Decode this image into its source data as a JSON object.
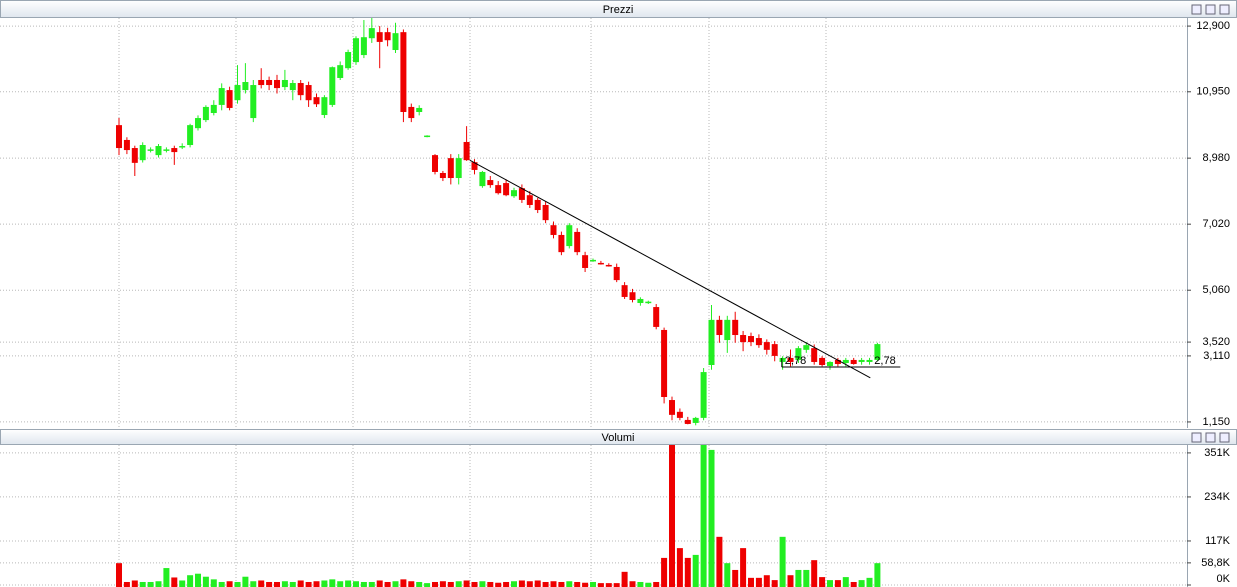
{
  "chart_data": [
    {
      "type": "candlestick",
      "title": "Prezzi",
      "open": [
        9.96,
        9.52,
        9.28,
        8.92,
        9.2,
        9.07,
        9.2,
        9.28,
        9.3,
        9.37,
        9.87,
        10.11,
        10.32,
        10.56,
        11.0,
        10.7,
        11.0,
        10.17,
        11.3,
        11.3,
        11.3,
        11.09,
        11.0,
        11.21,
        11.15,
        10.79,
        10.26,
        10.56,
        11.36,
        11.65,
        11.83,
        12.04,
        12.54,
        12.72,
        12.72,
        12.19,
        12.72,
        10.5,
        10.35,
        9.63,
        9.07,
        8.54,
        8.98,
        8.39,
        9.46,
        8.86,
        8.15,
        8.33,
        8.18,
        8.24,
        7.85,
        8.09,
        7.88,
        7.74,
        7.59,
        6.99,
        6.7,
        6.37,
        6.79,
        6.1,
        5.93,
        5.87,
        5.81,
        5.75,
        5.21,
        5.0,
        4.68,
        4.71,
        4.56,
        3.88,
        1.8,
        1.45,
        1.21,
        1.12,
        1.27,
        2.84,
        4.18,
        3.58,
        4.18,
        3.73,
        3.7,
        3.64,
        3.52,
        3.46,
        2.93,
        3.05,
        2.99,
        3.29,
        3.34,
        3.05,
        2.81,
        2.99,
        2.9,
        2.99,
        2.93,
        2.93,
        2.99
      ],
      "high": [
        10.17,
        9.6,
        9.35,
        9.45,
        9.3,
        9.4,
        9.3,
        9.35,
        9.42,
        10.0,
        10.25,
        10.55,
        10.7,
        11.2,
        11.1,
        11.74,
        11.8,
        11.3,
        11.65,
        11.4,
        11.45,
        11.6,
        11.3,
        11.3,
        11.25,
        10.9,
        10.85,
        11.7,
        11.85,
        12.2,
        12.6,
        13.08,
        13.14,
        12.9,
        12.85,
        13.0,
        12.8,
        10.6,
        10.55,
        9.66,
        9.1,
        8.6,
        9.1,
        9.1,
        9.93,
        8.95,
        8.6,
        8.45,
        8.3,
        8.35,
        8.1,
        8.2,
        8.0,
        7.8,
        7.7,
        7.1,
        6.8,
        7.05,
        6.9,
        6.2,
        6.0,
        5.93,
        5.86,
        5.85,
        5.3,
        5.1,
        4.85,
        4.75,
        4.65,
        3.95,
        1.9,
        1.55,
        1.3,
        1.3,
        2.75,
        4.62,
        4.3,
        4.3,
        4.42,
        3.85,
        3.8,
        3.75,
        3.6,
        3.55,
        3.1,
        3.3,
        3.4,
        3.52,
        3.45,
        3.1,
        2.95,
        3.05,
        3.05,
        3.05,
        3.05,
        3.05,
        3.5
      ],
      "low": [
        9.07,
        9.1,
        8.45,
        8.85,
        9.15,
        9.0,
        9.15,
        8.78,
        9.25,
        9.3,
        9.8,
        10.05,
        10.25,
        10.4,
        10.4,
        10.6,
        10.9,
        10.05,
        11.05,
        11.0,
        10.9,
        11.0,
        10.7,
        10.7,
        10.5,
        10.5,
        10.17,
        10.5,
        11.3,
        11.6,
        11.75,
        11.95,
        12.4,
        11.65,
        12.3,
        12.1,
        10.05,
        10.05,
        10.25,
        9.6,
        8.5,
        8.3,
        8.2,
        8.2,
        8.9,
        8.5,
        8.1,
        8.1,
        7.9,
        7.85,
        7.8,
        7.65,
        7.5,
        7.35,
        7.05,
        6.6,
        6.1,
        6.3,
        6.1,
        5.6,
        5.9,
        5.82,
        5.76,
        5.3,
        4.8,
        4.7,
        4.6,
        4.65,
        3.9,
        1.7,
        1.2,
        1.2,
        1.08,
        1.05,
        1.2,
        2.7,
        3.5,
        3.2,
        3.5,
        3.25,
        3.4,
        3.35,
        3.15,
        2.95,
        2.7,
        2.8,
        2.9,
        3.2,
        2.85,
        2.8,
        2.7,
        2.8,
        2.8,
        2.85,
        2.85,
        2.85,
        2.95
      ],
      "close": [
        9.28,
        9.22,
        8.84,
        9.37,
        9.24,
        9.34,
        9.24,
        9.16,
        9.34,
        9.96,
        10.17,
        10.5,
        10.56,
        11.06,
        10.47,
        11.15,
        11.24,
        11.15,
        11.15,
        11.15,
        11.06,
        11.3,
        11.21,
        10.85,
        10.7,
        10.58,
        10.79,
        11.68,
        11.74,
        12.13,
        12.54,
        12.57,
        12.84,
        12.43,
        12.48,
        12.69,
        10.35,
        10.17,
        10.47,
        9.65,
        8.57,
        8.39,
        8.39,
        8.98,
        8.92,
        8.63,
        8.57,
        8.18,
        7.94,
        7.88,
        8.03,
        7.74,
        7.59,
        7.44,
        7.14,
        6.7,
        6.19,
        6.99,
        6.19,
        5.72,
        5.96,
        5.85,
        5.79,
        5.36,
        4.86,
        4.77,
        4.8,
        4.72,
        3.97,
        1.89,
        1.36,
        1.27,
        1.09,
        1.27,
        2.63,
        4.18,
        3.73,
        4.18,
        3.73,
        3.52,
        3.52,
        3.43,
        3.29,
        3.11,
        3.05,
        2.93,
        3.34,
        3.43,
        2.93,
        2.84,
        2.93,
        2.87,
        2.99,
        2.87,
        2.99,
        2.99,
        3.46
      ],
      "colors": {
        "up": "#22ee22",
        "down": "#ee0000"
      },
      "ylim": [
        0.97,
        13.14
      ],
      "yticks": [
        {
          "value": 12.9,
          "label": "12,900"
        },
        {
          "value": 10.95,
          "label": "10,950"
        },
        {
          "value": 8.98,
          "label": "8,980"
        },
        {
          "value": 7.02,
          "label": "7,020"
        },
        {
          "value": 5.06,
          "label": "5,060"
        },
        {
          "value": 3.52,
          "label": "3,520"
        },
        {
          "value": 3.11,
          "label": "3,110"
        },
        {
          "value": 1.15,
          "label": "1,150"
        }
      ],
      "grid": true,
      "trendline": {
        "x": [
          44.4,
          95.1
        ],
        "y": [
          8.92,
          2.46
        ]
      },
      "level": {
        "value": 2.78,
        "x": [
          83.9,
          98.9
        ],
        "labels": [
          "2,78",
          "2,78"
        ]
      }
    },
    {
      "type": "bar",
      "title": "Volumi",
      "values": [
        58000,
        8000,
        12000,
        8000,
        8000,
        10000,
        45000,
        20000,
        12000,
        26000,
        30000,
        22000,
        15000,
        8000,
        10000,
        8000,
        22000,
        10000,
        12000,
        8000,
        8000,
        10000,
        8000,
        12000,
        8000,
        10000,
        12000,
        15000,
        10000,
        12000,
        10000,
        8000,
        8000,
        12000,
        8000,
        10000,
        15000,
        10000,
        8000,
        5000,
        8000,
        10000,
        8000,
        10000,
        12000,
        8000,
        10000,
        8000,
        6000,
        8000,
        10000,
        12000,
        10000,
        12000,
        8000,
        10000,
        8000,
        10000,
        8000,
        6000,
        8000,
        5000,
        5000,
        5000,
        35000,
        10000,
        8000,
        6000,
        8000,
        72000,
        372000,
        98000,
        72000,
        80000,
        372000,
        359000,
        128000,
        58000,
        40000,
        98000,
        19000,
        19000,
        26000,
        13000,
        128000,
        26000,
        40000,
        40000,
        66000,
        21000,
        13000,
        13000,
        21000,
        8000,
        13000,
        19000,
        58000
      ],
      "colors": {
        "up": "#22ee22",
        "down": "#ee0000"
      },
      "ylim": [
        0,
        372000
      ],
      "yticks": [
        {
          "value": 351000,
          "label": "351K"
        },
        {
          "value": 234000,
          "label": "234K"
        },
        {
          "value": 117000,
          "label": "117K"
        },
        {
          "value": 58800,
          "label": "58,8K"
        },
        {
          "value": 0,
          "label": "0K"
        }
      ],
      "grid": true
    }
  ]
}
